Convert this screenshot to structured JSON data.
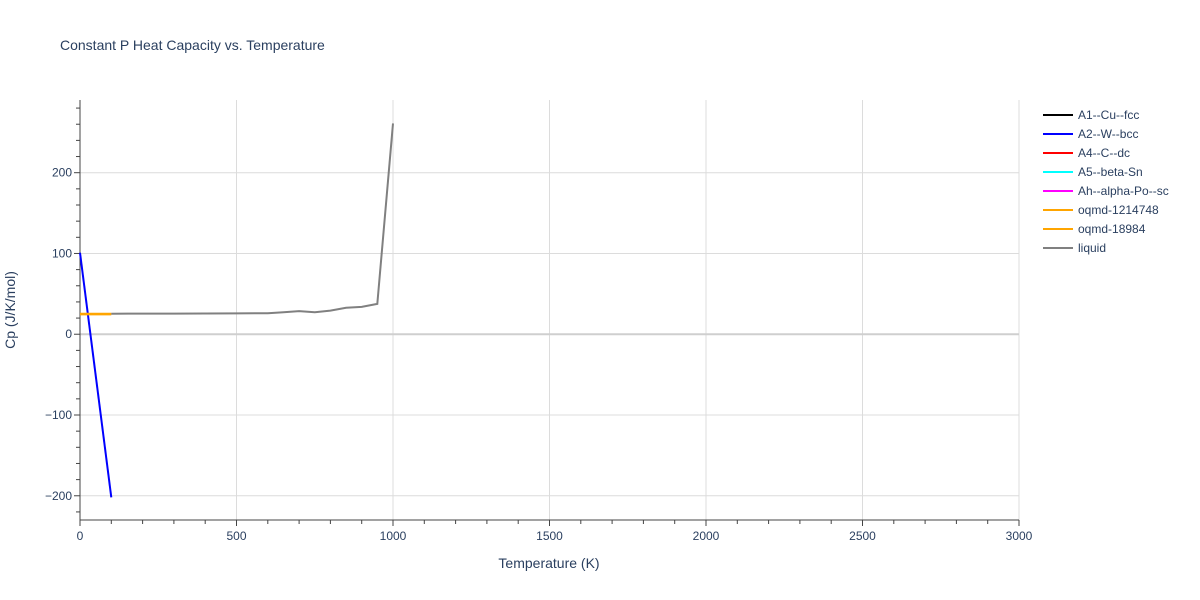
{
  "chart_data": {
    "type": "line",
    "title": "Constant P Heat Capacity vs. Temperature",
    "xlabel": "Temperature (K)",
    "ylabel": "Cp (J/K/mol)",
    "xlim": [
      0,
      3000
    ],
    "ylim": [
      -230,
      290
    ],
    "x_ticks": [
      0,
      500,
      1000,
      1500,
      2000,
      2500,
      3000
    ],
    "x_tick_labels": [
      "0",
      "500",
      "1000",
      "1500",
      "2000",
      "2500",
      "3000"
    ],
    "y_ticks": [
      -200,
      -100,
      0,
      100,
      200
    ],
    "y_tick_labels": [
      "−200",
      "−100",
      "0",
      "100",
      "200"
    ],
    "grid": true,
    "legend_position": "right",
    "series": [
      {
        "name": "A1--Cu--fcc",
        "color": "#000000",
        "x": [],
        "y": []
      },
      {
        "name": "A2--W--bcc",
        "color": "#0000ff",
        "x": [
          0,
          100
        ],
        "y": [
          101,
          -202
        ]
      },
      {
        "name": "A4--C--dc",
        "color": "#ff0000",
        "x": [],
        "y": []
      },
      {
        "name": "A5--beta-Sn",
        "color": "#00ffff",
        "x": [],
        "y": []
      },
      {
        "name": "Ah--alpha-Po--sc",
        "color": "#ff00ff",
        "x": [],
        "y": []
      },
      {
        "name": "oqmd-1214748",
        "color": "#ffa500",
        "x": [
          0,
          100
        ],
        "y": [
          24.5,
          24.5
        ]
      },
      {
        "name": "oqmd-18984",
        "color": "#ffa500",
        "x": [
          0,
          100
        ],
        "y": [
          25.3,
          25.3
        ]
      },
      {
        "name": "liquid",
        "color": "#808080",
        "x": [
          100,
          300,
          500,
          600,
          650,
          700,
          750,
          800,
          850,
          900,
          950,
          1000
        ],
        "y": [
          25.4,
          25.6,
          25.8,
          26.0,
          27.3,
          28.6,
          27.3,
          29.3,
          32.7,
          33.9,
          37.6,
          261
        ]
      }
    ]
  }
}
